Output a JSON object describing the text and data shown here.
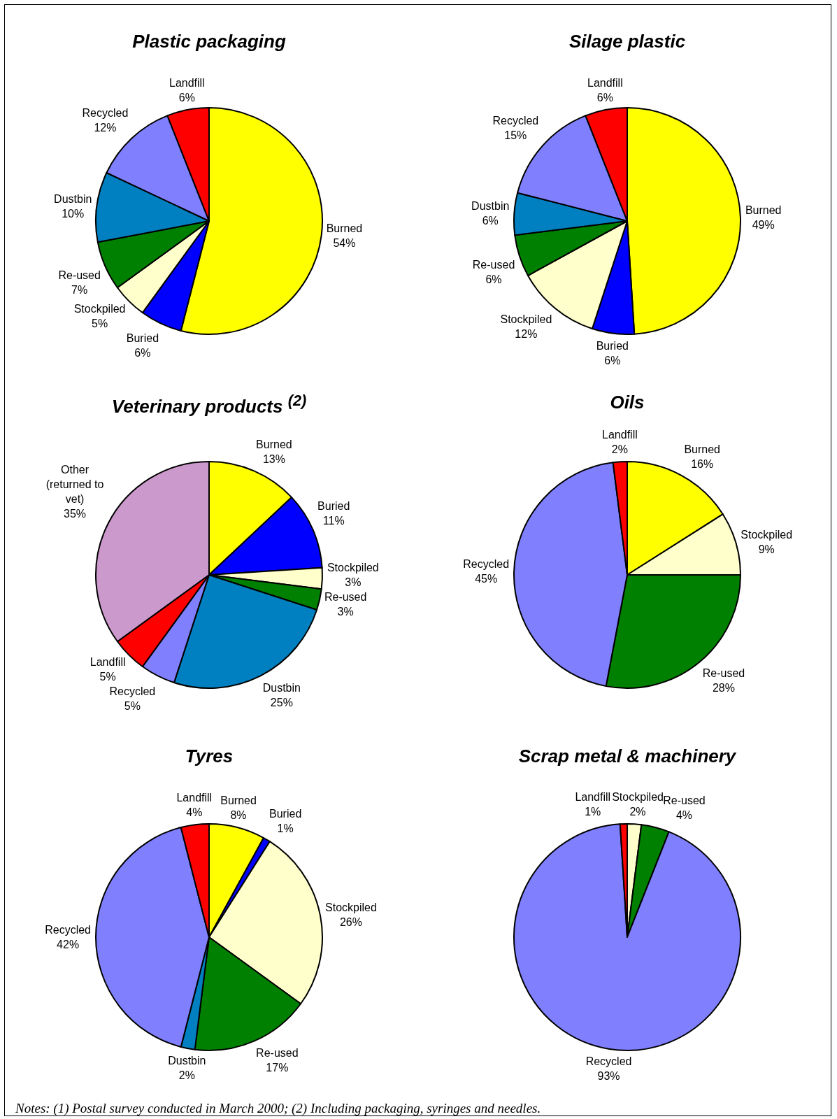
{
  "chart_data": [
    {
      "type": "pie",
      "title": "Plastic packaging",
      "categories": [
        "Burned",
        "Buried",
        "Stockpiled",
        "Re-used",
        "Dustbin",
        "Recycled",
        "Landfill"
      ],
      "values": [
        54,
        6,
        5,
        7,
        10,
        12,
        6
      ],
      "value_labels": [
        "54%",
        "6%",
        "5%",
        "7%",
        "10%",
        "12%",
        "6%"
      ],
      "colors": [
        "#ffff00",
        "#0000ff",
        "#ffffcc",
        "#008000",
        "#0080c0",
        "#8080ff",
        "#ff0000"
      ]
    },
    {
      "type": "pie",
      "title": "Silage plastic",
      "categories": [
        "Burned",
        "Buried",
        "Stockpiled",
        "Re-used",
        "Dustbin",
        "Recycled",
        "Landfill"
      ],
      "values": [
        49,
        6,
        12,
        6,
        6,
        15,
        6
      ],
      "value_labels": [
        "49%",
        "6%",
        "12%",
        "6%",
        "6%",
        "15%",
        "6%"
      ],
      "colors": [
        "#ffff00",
        "#0000ff",
        "#ffffcc",
        "#008000",
        "#0080c0",
        "#8080ff",
        "#ff0000"
      ]
    },
    {
      "type": "pie",
      "title": "Veterinary products $^{(2)}$",
      "categories": [
        "Burned",
        "Buried",
        "Stockpiled",
        "Re-used",
        "Dustbin",
        "Recycled",
        "Landfill",
        "Other\n(returned to\nvet)"
      ],
      "values": [
        13,
        11,
        3,
        3,
        25,
        5,
        5,
        35
      ],
      "value_labels": [
        "13%",
        "11%",
        "3%",
        "3%",
        "25%",
        "5%",
        "5%",
        "35%"
      ],
      "colors": [
        "#ffff00",
        "#0000ff",
        "#ffffcc",
        "#008000",
        "#0080c0",
        "#8080ff",
        "#ff0000",
        "#cc99cc"
      ]
    },
    {
      "type": "pie",
      "title": "Oils",
      "categories": [
        "Burned",
        "Stockpiled",
        "Re-used",
        "Recycled",
        "Landfill"
      ],
      "values": [
        16,
        9,
        28,
        45,
        2
      ],
      "value_labels": [
        "16%",
        "9%",
        "28%",
        "45%",
        "2%"
      ],
      "colors": [
        "#ffff00",
        "#ffffcc",
        "#008000",
        "#8080ff",
        "#ff0000"
      ]
    },
    {
      "type": "pie",
      "title": "Tyres",
      "categories": [
        "Burned",
        "Buried",
        "Stockpiled",
        "Re-used",
        "Dustbin",
        "Recycled",
        "Landfill"
      ],
      "values": [
        8,
        1,
        26,
        17,
        2,
        42,
        4
      ],
      "value_labels": [
        "8%",
        "1%",
        "26%",
        "17%",
        "2%",
        "42%",
        "4%"
      ],
      "colors": [
        "#ffff00",
        "#0000ff",
        "#ffffcc",
        "#008000",
        "#0080c0",
        "#8080ff",
        "#ff0000"
      ]
    },
    {
      "type": "pie",
      "title": "Scrap metal & machinery",
      "categories": [
        "Stockpiled",
        "Re-used",
        "Recycled",
        "Landfill"
      ],
      "values": [
        2,
        4,
        93,
        1
      ],
      "value_labels": [
        "2%",
        "4%",
        "93%",
        "1%"
      ],
      "colors": [
        "#ffffcc",
        "#008000",
        "#8080ff",
        "#ff0000"
      ],
      "annotations": [
        "Notes:  (1)  Postal survey conducted in March 2000;  (2) Including packaging, syringes and needles."
      ]
    }
  ]
}
